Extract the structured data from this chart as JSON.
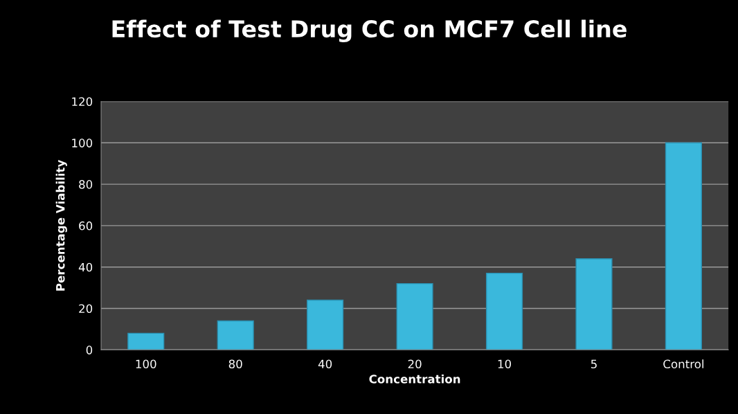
{
  "chart_data": {
    "type": "bar",
    "title": "Effect of Test Drug CC on MCF7 Cell line",
    "xlabel": "Concentration",
    "ylabel": "Percentage Viability",
    "categories": [
      "100",
      "80",
      "40",
      "20",
      "10",
      "5",
      "Control"
    ],
    "values": [
      8,
      14,
      24,
      32,
      37,
      44,
      100
    ],
    "color": "#3ab8dc",
    "ylim": [
      0,
      120
    ],
    "yticks": [
      0,
      20,
      40,
      60,
      80,
      100,
      120
    ],
    "grid": "y",
    "legend": false
  }
}
